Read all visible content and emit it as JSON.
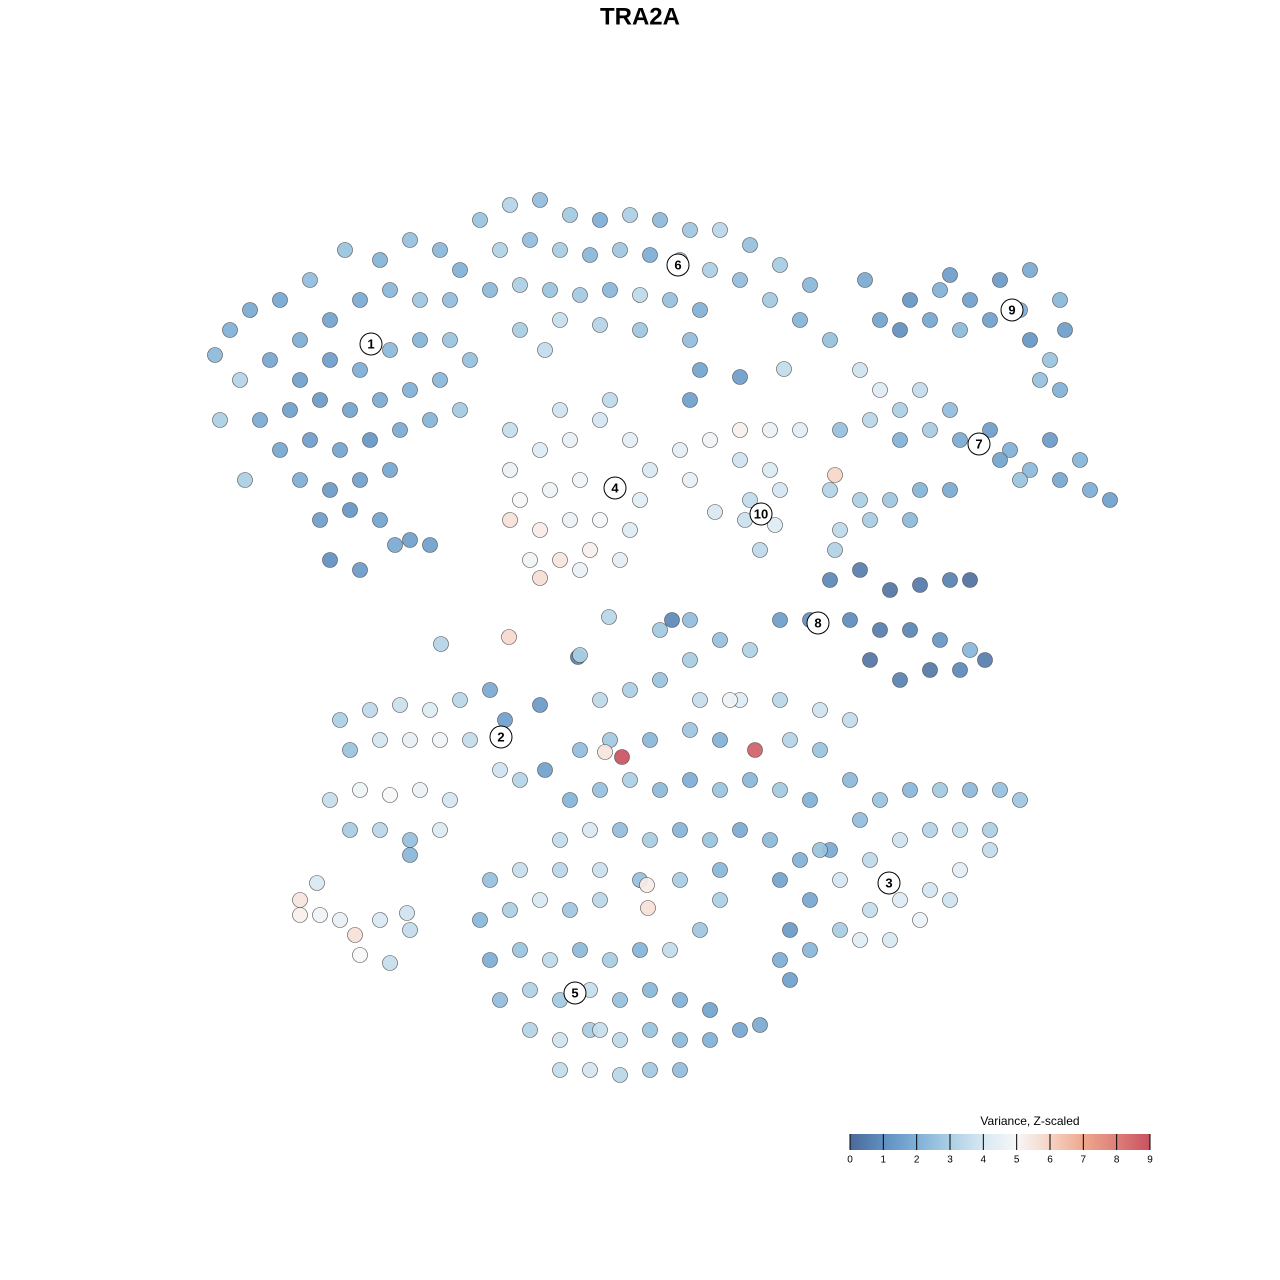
{
  "chart_data": {
    "type": "scatter",
    "title": "TRA2A",
    "xlim": [
      0,
      100
    ],
    "ylim": [
      0,
      95
    ],
    "point_stroke": "#4d4d4d",
    "colorbar": {
      "title": "Variance, Z-scaled",
      "lim": [
        0,
        9
      ],
      "ticks": [
        0,
        1,
        2,
        3,
        4,
        5,
        6,
        7,
        8,
        9
      ],
      "colors": [
        "#4a6a98",
        "#5f8fc0",
        "#7fb0d6",
        "#abcfe4",
        "#d8e8f2",
        "#f7f7f7",
        "#f6d3c3",
        "#eea88f",
        "#dd7f78",
        "#c9525f"
      ]
    },
    "groups": [
      {
        "label": "1",
        "label_x": 21.1,
        "label_y": 76.6,
        "x": [
          5.5,
          7,
          9,
          12,
          15,
          18.5,
          22,
          25,
          28,
          30,
          14,
          17,
          20,
          23,
          26,
          29,
          8,
          11,
          14,
          17,
          20,
          23,
          26,
          29,
          6,
          10,
          13,
          16,
          19,
          22,
          25,
          28,
          31,
          12,
          15,
          18,
          21,
          24,
          27,
          14,
          17,
          20,
          23,
          16,
          19,
          22,
          25,
          17,
          20,
          23.5,
          27,
          8.5,
          30
        ],
        "y": [
          75.5,
          78,
          80,
          81,
          83,
          86,
          85,
          87,
          86,
          84,
          77,
          79,
          81,
          82,
          81,
          81,
          73,
          75,
          73,
          75,
          74,
          76,
          77,
          77,
          69,
          69,
          70,
          71,
          70,
          71,
          72,
          73,
          75,
          66,
          67,
          66,
          67,
          68,
          69,
          63,
          62,
          63,
          64,
          59,
          60,
          59,
          57,
          55,
          54,
          56.5,
          56.5,
          63,
          70
        ],
        "values": [
          2.3,
          2.0,
          1.8,
          1.7,
          2.4,
          2.6,
          2.1,
          2.5,
          2.2,
          2.0,
          1.9,
          1.6,
          1.8,
          2.2,
          2.7,
          2.4,
          3.2,
          1.7,
          1.5,
          1.4,
          1.9,
          2.3,
          2.1,
          2.6,
          3.0,
          1.8,
          1.5,
          1.3,
          1.6,
          1.8,
          2.0,
          2.2,
          2.5,
          1.7,
          1.4,
          1.6,
          1.2,
          1.8,
          2.1,
          1.9,
          1.3,
          1.5,
          1.7,
          1.4,
          1.2,
          1.6,
          1.5,
          1.0,
          1.3,
          1.8,
          1.5,
          3.0,
          2.8
        ]
      },
      {
        "label": "6",
        "label_x": 51.8,
        "label_y": 84.5,
        "x": [
          32,
          35,
          38,
          41,
          44,
          47,
          50,
          53,
          56,
          59,
          62,
          65,
          34,
          37,
          40,
          43,
          46,
          49,
          52,
          55,
          58,
          61,
          64,
          67,
          33,
          36,
          39,
          42,
          45,
          48,
          51,
          54,
          40,
          44,
          48,
          53,
          54,
          53,
          36,
          38.5
        ],
        "y": [
          89,
          90.5,
          91,
          89.5,
          89,
          89.5,
          89,
          88,
          88,
          86.5,
          84.5,
          82.5,
          86,
          87,
          86,
          85.5,
          86,
          85.5,
          85,
          84,
          83,
          81,
          79,
          77,
          82,
          82.5,
          82,
          81.5,
          82,
          81.5,
          81,
          80,
          79,
          78.5,
          78,
          77,
          74,
          71,
          78,
          76
        ],
        "values": [
          2.6,
          3.2,
          2.4,
          2.8,
          1.9,
          3.0,
          2.3,
          2.7,
          3.3,
          2.5,
          2.9,
          2.2,
          3.1,
          2.4,
          2.9,
          2.2,
          2.7,
          1.9,
          2.6,
          3.0,
          2.4,
          2.8,
          2.1,
          2.5,
          2.3,
          3.0,
          2.6,
          2.8,
          2.2,
          3.4,
          2.5,
          2.0,
          3.6,
          3.2,
          2.7,
          2.4,
          1.6,
          1.5,
          2.9,
          3.5
        ]
      },
      {
        "label": "4",
        "label_x": 45.5,
        "label_y": 62.2,
        "x": [
          35,
          38,
          41,
          44,
          47,
          49,
          36,
          39,
          42,
          45.5,
          48,
          35,
          38,
          41,
          44,
          47,
          37,
          40,
          43,
          46,
          38,
          42,
          35,
          40,
          45
        ],
        "y": [
          64,
          66,
          67,
          69,
          67,
          64,
          61,
          62,
          63,
          62.3,
          61,
          59,
          58,
          59,
          59,
          58,
          55,
          55,
          56,
          55,
          53.2,
          54,
          68,
          70,
          71
        ],
        "values": [
          4.6,
          4.2,
          4.5,
          3.9,
          4.4,
          4.0,
          5.0,
          4.7,
          4.8,
          4.5,
          4.3,
          5.6,
          5.3,
          4.6,
          4.9,
          4.2,
          4.8,
          5.5,
          5.2,
          4.4,
          5.7,
          4.6,
          3.6,
          3.8,
          3.4
        ]
      },
      {
        "label": "10",
        "label_x": 60.1,
        "label_y": 59.6,
        "x": [
          52,
          55,
          58,
          61,
          64,
          58,
          61,
          59,
          62,
          58.5,
          61.5,
          60,
          53,
          55.5
        ],
        "y": [
          66,
          67,
          68,
          68,
          68,
          65,
          64,
          61,
          62,
          59,
          58.5,
          56,
          63,
          59.8
        ],
        "values": [
          4.4,
          4.8,
          5.2,
          4.6,
          4.3,
          3.8,
          4.1,
          3.5,
          3.9,
          3.7,
          4.2,
          3.4,
          4.5,
          4.0
        ]
      },
      {
        "label": "9",
        "label_x": 85.2,
        "label_y": 80,
        "x": [
          72,
          75,
          78,
          81,
          84,
          87,
          90,
          90.5,
          89,
          90,
          74,
          77,
          80,
          83,
          86,
          87,
          88,
          79,
          70.5
        ],
        "y": [
          79,
          81,
          82,
          81,
          83,
          84,
          81,
          78,
          75,
          72,
          78,
          79,
          78,
          79,
          80,
          77,
          73,
          83.5,
          83
        ],
        "values": [
          1.6,
          1.2,
          2.0,
          1.5,
          1.3,
          1.8,
          2.2,
          1.4,
          2.6,
          2.0,
          1.0,
          1.7,
          2.3,
          1.5,
          1.9,
          1.2,
          2.5,
          1.4,
          1.8
        ]
      },
      {
        "label": "7",
        "label_x": 81.9,
        "label_y": 66.6,
        "x": [
          70,
          72,
          74,
          76,
          79,
          80,
          83,
          85,
          87,
          90,
          93,
          95,
          92,
          89,
          86,
          84,
          77,
          71,
          68,
          74,
          67,
          70,
          73,
          76,
          79,
          68,
          71,
          75,
          67.5
        ],
        "y": [
          74,
          72,
          70,
          72,
          70,
          67,
          68,
          66,
          64,
          63,
          62,
          61,
          65,
          67,
          63,
          65,
          68,
          69,
          68,
          67,
          62,
          61,
          61,
          62,
          62,
          58,
          59,
          59,
          56
        ],
        "values": [
          3.8,
          4.2,
          3.0,
          3.5,
          2.4,
          1.8,
          1.4,
          2.0,
          2.3,
          1.7,
          1.9,
          1.5,
          2.1,
          1.3,
          2.6,
          1.6,
          2.9,
          3.3,
          2.5,
          2.0,
          3.2,
          3.0,
          2.7,
          2.1,
          1.8,
          3.4,
          2.9,
          2.3,
          3.1
        ]
      },
      {
        "label": "8",
        "label_x": 65.8,
        "label_y": 48.7,
        "x": [
          67,
          70,
          73,
          76,
          79,
          81,
          62,
          65,
          69,
          72,
          75,
          78,
          81,
          71,
          74,
          77,
          80,
          82.5
        ],
        "y": [
          53,
          54,
          52,
          52.5,
          53,
          53,
          49,
          49,
          49,
          48,
          48,
          47,
          46,
          45,
          43,
          44,
          44,
          45
        ],
        "values": [
          0.8,
          0.5,
          0.3,
          0.4,
          0.6,
          0.2,
          1.4,
          1.0,
          0.9,
          0.5,
          0.7,
          1.2,
          2.2,
          0.3,
          0.6,
          0.4,
          0.8,
          0.5
        ]
      },
      {
        "label": "2",
        "label_x": 34.1,
        "label_y": 37.3,
        "x": [
          18,
          21,
          24,
          27,
          30,
          33,
          19,
          22,
          25,
          28,
          31,
          17,
          20,
          23,
          26,
          29,
          19,
          22,
          25,
          28,
          34,
          36,
          34.5,
          25
        ],
        "y": [
          39,
          40,
          40.5,
          40,
          41,
          42,
          36,
          37,
          37,
          37,
          37,
          31,
          32,
          31.5,
          32,
          31,
          28,
          28,
          27,
          28,
          34,
          33,
          39,
          25.5
        ],
        "values": [
          3.0,
          3.4,
          3.7,
          4.2,
          3.3,
          1.8,
          2.6,
          3.9,
          4.5,
          4.8,
          3.5,
          3.6,
          4.7,
          5.0,
          4.6,
          3.9,
          2.9,
          3.3,
          2.5,
          4.1,
          3.8,
          3.2,
          1.5,
          2.2
        ]
      },
      {
        "label": "3",
        "label_x": 72.9,
        "label_y": 22.7,
        "x": [
          62,
          64,
          67,
          70,
          72,
          75,
          78,
          81,
          84,
          86,
          83,
          80,
          77,
          74,
          71,
          68,
          65,
          63,
          62,
          65,
          68,
          71,
          74,
          77,
          80,
          83,
          70,
          73,
          76,
          79,
          63,
          66,
          69
        ],
        "y": [
          23,
          25,
          26,
          29,
          31,
          32,
          32,
          32,
          32,
          31,
          28,
          28,
          28,
          27,
          25,
          23,
          21,
          18,
          15,
          16,
          18,
          20,
          21,
          22,
          24,
          26,
          17,
          17,
          19,
          21,
          13,
          26,
          33
        ],
        "values": [
          1.6,
          2.0,
          1.8,
          2.4,
          2.6,
          2.2,
          2.8,
          2.3,
          2.5,
          2.7,
          3.0,
          3.6,
          3.2,
          3.8,
          3.4,
          3.9,
          1.7,
          1.3,
          1.9,
          2.2,
          2.9,
          3.6,
          4.2,
          3.9,
          4.4,
          3.5,
          4.3,
          4.0,
          4.6,
          3.8,
          1.5,
          2.6,
          2.3
        ]
      },
      {
        "label": "5",
        "label_x": 41.5,
        "label_y": 11.7,
        "x": [
          33,
          36,
          32,
          35,
          38,
          41,
          44,
          33,
          36,
          39,
          42,
          45,
          48,
          51,
          34,
          37,
          40,
          43,
          46,
          49,
          52,
          55,
          37,
          40,
          43,
          46,
          49,
          52,
          55,
          58,
          60,
          40,
          43,
          46,
          49,
          52,
          44,
          54,
          56
        ],
        "y": [
          23,
          24,
          19,
          20,
          21,
          20,
          21,
          15,
          16,
          15,
          16,
          15,
          16,
          16,
          11,
          12,
          11,
          12,
          11,
          12,
          11,
          10,
          8,
          7,
          8,
          7,
          8,
          7,
          7,
          8,
          8.5,
          4,
          4,
          3.5,
          4,
          4,
          8,
          18,
          21
        ],
        "values": [
          2.5,
          3.6,
          2.2,
          3.0,
          4.0,
          2.7,
          3.3,
          1.9,
          2.6,
          3.4,
          2.3,
          2.9,
          2.1,
          3.5,
          2.4,
          3.1,
          2.8,
          3.6,
          2.5,
          2.2,
          2.0,
          1.6,
          3.2,
          3.8,
          2.9,
          3.4,
          2.6,
          2.3,
          2.0,
          1.7,
          1.8,
          3.5,
          3.9,
          3.3,
          2.8,
          2.4,
          3.6,
          2.7,
          3.0
        ]
      },
      {
        "x": [
          14,
          14,
          15.7,
          16,
          18,
          19.5,
          20,
          22,
          23,
          25,
          24.7,
          28.1,
          34.9,
          41.8,
          44.9,
          51.2,
          67.5,
          62.4,
          58
        ],
        "y": [
          21,
          19.5,
          22.7,
          19.5,
          19,
          17.5,
          15.5,
          19,
          14.7,
          18,
          19.7,
          46.6,
          47.3,
          45.3,
          49.3,
          49,
          63.5,
          74.1,
          73.3
        ],
        "values": [
          5.5,
          5.2,
          4.0,
          4.8,
          4.5,
          5.6,
          5.0,
          4.0,
          3.6,
          3.5,
          3.8,
          3.2,
          5.8,
          0.6,
          3.3,
          0.8,
          5.9,
          3.5,
          1.4
        ]
      },
      {
        "x": [
          44,
          47,
          50,
          53,
          56,
          59,
          54,
          58,
          62,
          66,
          69,
          42,
          45,
          49,
          53,
          56,
          63,
          66,
          41,
          44,
          47,
          50,
          53,
          56,
          59,
          62,
          65,
          40,
          43,
          46,
          49,
          52,
          55,
          58,
          61,
          40,
          44,
          48,
          52,
          56,
          50,
          53,
          42,
          38,
          38.5,
          57,
          44.5,
          48.7,
          48.8,
          46.2,
          59.5
        ],
        "y": [
          41,
          42,
          43,
          45,
          47,
          46,
          41,
          41,
          41,
          40,
          39,
          36,
          37,
          37,
          38,
          37,
          37,
          36,
          31,
          32,
          33,
          32,
          33,
          32,
          33,
          32,
          31,
          27,
          28,
          28,
          27,
          28,
          27,
          28,
          27,
          24,
          24,
          23,
          23,
          24,
          48,
          49,
          45.5,
          40.5,
          34,
          41,
          35.8,
          22.5,
          20.2,
          35.3,
          36
        ],
        "values": [
          3.4,
          3.0,
          2.6,
          2.9,
          2.5,
          3.1,
          3.6,
          4.2,
          3.3,
          3.8,
          3.5,
          2.4,
          2.8,
          2.2,
          2.7,
          2.0,
          3.2,
          2.6,
          2.1,
          2.5,
          3.0,
          2.3,
          1.9,
          2.6,
          2.2,
          2.8,
          2.0,
          3.5,
          4.0,
          2.4,
          2.9,
          2.1,
          2.6,
          1.8,
          2.3,
          3.3,
          3.7,
          2.5,
          2.9,
          2.2,
          2.8,
          2.4,
          3.0,
          1.3,
          1.5,
          4.7,
          5.5,
          5.3,
          5.6,
          9.0,
          8.7
        ]
      }
    ]
  }
}
